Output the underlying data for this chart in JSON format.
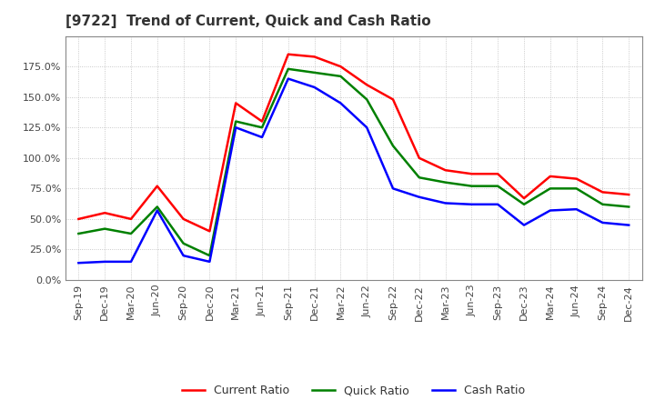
{
  "title": "[9722]  Trend of Current, Quick and Cash Ratio",
  "x_labels": [
    "Sep-19",
    "Dec-19",
    "Mar-20",
    "Jun-20",
    "Sep-20",
    "Dec-20",
    "Mar-21",
    "Jun-21",
    "Sep-21",
    "Dec-21",
    "Mar-22",
    "Jun-22",
    "Sep-22",
    "Dec-22",
    "Mar-23",
    "Jun-23",
    "Sep-23",
    "Dec-23",
    "Mar-24",
    "Jun-24",
    "Sep-24",
    "Dec-24"
  ],
  "current_ratio": [
    50.0,
    55.0,
    50.0,
    77.0,
    50.0,
    40.0,
    145.0,
    130.0,
    185.0,
    183.0,
    175.0,
    160.0,
    148.0,
    100.0,
    90.0,
    87.0,
    87.0,
    67.0,
    85.0,
    83.0,
    72.0,
    70.0
  ],
  "quick_ratio": [
    38.0,
    42.0,
    38.0,
    60.0,
    30.0,
    20.0,
    130.0,
    125.0,
    173.0,
    170.0,
    167.0,
    148.0,
    110.0,
    84.0,
    80.0,
    77.0,
    77.0,
    62.0,
    75.0,
    75.0,
    62.0,
    60.0
  ],
  "cash_ratio": [
    14.0,
    15.0,
    15.0,
    57.0,
    20.0,
    15.0,
    125.0,
    117.0,
    165.0,
    158.0,
    145.0,
    125.0,
    75.0,
    68.0,
    63.0,
    62.0,
    62.0,
    45.0,
    57.0,
    58.0,
    47.0,
    45.0
  ],
  "current_color": "#FF0000",
  "quick_color": "#008000",
  "cash_color": "#0000FF",
  "background_color": "#FFFFFF",
  "plot_bg_color": "#FFFFFF",
  "grid_color": "#AAAAAA",
  "ylim": [
    0.0,
    200.0
  ],
  "yticks": [
    0.0,
    25.0,
    50.0,
    75.0,
    100.0,
    125.0,
    150.0,
    175.0
  ],
  "legend_labels": [
    "Current Ratio",
    "Quick Ratio",
    "Cash Ratio"
  ],
  "line_width": 1.8,
  "title_fontsize": 11,
  "tick_fontsize": 8,
  "legend_fontsize": 9
}
